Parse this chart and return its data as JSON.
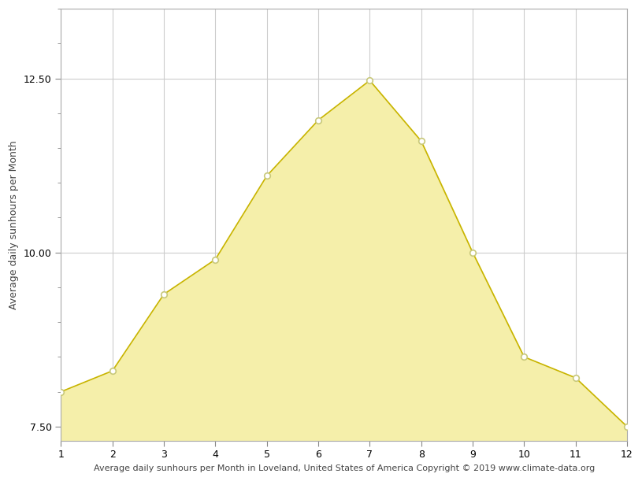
{
  "x": [
    1,
    2,
    3,
    4,
    5,
    6,
    7,
    8,
    9,
    10,
    11,
    12
  ],
  "y": [
    8.0,
    8.3,
    9.4,
    9.9,
    11.1,
    11.9,
    12.47,
    11.6,
    10.0,
    8.5,
    8.2,
    7.5
  ],
  "fill_color": "#f5efaa",
  "line_color": "#c8b400",
  "marker_facecolor": "white",
  "marker_edgecolor": "#c8c87a",
  "ylabel": "Average daily sunhours per Month",
  "xlabel": "Average daily sunhours per Month in Loveland, United States of America Copyright © 2019 www.climate-data.org",
  "yticks": [
    7.5,
    10.0,
    12.5
  ],
  "xticks": [
    1,
    2,
    3,
    4,
    5,
    6,
    7,
    8,
    9,
    10,
    11,
    12
  ],
  "xlim": [
    1,
    12
  ],
  "ylim_bottom": 7.3,
  "ylim_top": 13.5,
  "fill_baseline": 7.3,
  "background_color": "#ffffff",
  "grid_color": "#cccccc",
  "axis_fontsize": 9,
  "tick_fontsize": 9,
  "xlabel_fontsize": 8
}
